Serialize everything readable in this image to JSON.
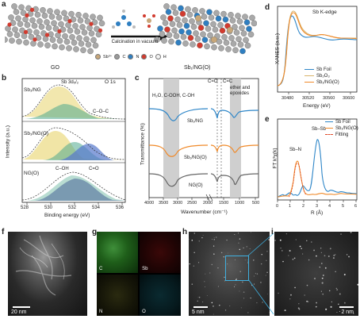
{
  "panel_letters": {
    "a": "a",
    "b": "b",
    "c": "c",
    "d": "d",
    "e": "e",
    "f": "f",
    "g": "g",
    "h": "h",
    "i": "i"
  },
  "panel_a": {
    "left_label": "GO",
    "right_label": "Sb₁/NG(O)",
    "arrow_text": "Calcination in vacuum",
    "legend": [
      {
        "label": "Sb³⁺",
        "color": "#c8a77a"
      },
      {
        "label": "C",
        "color": "#9a9a9a"
      },
      {
        "label": "N",
        "color": "#2f7fc1"
      },
      {
        "label": "O",
        "color": "#d23b2f"
      },
      {
        "label": "H",
        "color": "#f2f2f2"
      }
    ]
  },
  "panel_b": {
    "xlabel": "Binding energy (eV)",
    "ylabel": "Intensity (a.u.)",
    "xticks": [
      "528",
      "530",
      "532",
      "534",
      "536"
    ],
    "legend": "O 1s",
    "samples": [
      "Sb₁/NG",
      "Sb₁/NG(O)",
      "NG(O)"
    ],
    "annotations": [
      "Sb 3d₅/₂",
      "C–O–C",
      "C–OH",
      "C=O"
    ],
    "colors": {
      "yellow": "#e7d36b",
      "green": "#4fa98e",
      "purple": "#6b5fb0",
      "blue": "#5577cc"
    }
  },
  "panel_c": {
    "xlabel": "Wavenumber (cm⁻¹)",
    "ylabel": "Transmittance (%)",
    "xticks": [
      "4000",
      "3500",
      "3000",
      "2500",
      "2000",
      "1500",
      "1000",
      "500"
    ],
    "band_labels": [
      "H₂O, C-OOH, C-OH",
      "C=O",
      "C=C",
      "ether and epoxides"
    ],
    "samples": [
      "Sb₁/NG",
      "Sb₁/NG(O)",
      "NG(O)"
    ],
    "colors": {
      "Sb1/NG": "#2e86c8",
      "Sb1/NG(O)": "#f08a2a",
      "NG(O)": "#666666"
    }
  },
  "panel_d": {
    "title": "Sb K-edge",
    "xlabel": "Energy (eV)",
    "ylabel": "XANES (a.u.)",
    "xticks": [
      "30480",
      "30520",
      "30560",
      "30600"
    ],
    "legend": [
      {
        "label": "Sb Foil",
        "color": "#2e86c8"
      },
      {
        "label": "Sb₂O₃",
        "color": "#d9b36a"
      },
      {
        "label": "Sb₁/NG(O)",
        "color": "#f08a2a"
      }
    ]
  },
  "panel_e": {
    "xlabel": "R (Å)",
    "ylabel": "FT k³χ(k)",
    "xticks": [
      "0",
      "1",
      "2",
      "3",
      "4",
      "5",
      "6"
    ],
    "peak_labels": [
      "Sb–N",
      "Sb–Sb"
    ],
    "legend": [
      {
        "label": "Sb Foil",
        "color": "#2e86c8"
      },
      {
        "label": "Sb₁/NG(O)",
        "color": "#f08a2a"
      },
      {
        "label": "Fitting",
        "color": "#e04a2a"
      }
    ]
  },
  "panel_f": {
    "scale": "20 nm"
  },
  "panel_g": {
    "channels": [
      "C",
      "Sb",
      "N",
      "O"
    ]
  },
  "panel_h": {
    "scale": "5 nm"
  },
  "panel_i": {
    "scale": "2 nm"
  }
}
